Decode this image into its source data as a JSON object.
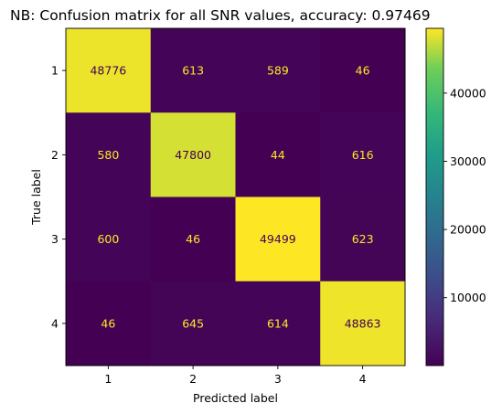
{
  "chart_data": {
    "type": "heatmap",
    "title": "NB: Confusion matrix for all SNR values, accuracy: 0.97469",
    "xlabel": "Predicted label",
    "ylabel": "True label",
    "x_categories": [
      "1",
      "2",
      "3",
      "4"
    ],
    "y_categories": [
      "1",
      "2",
      "3",
      "4"
    ],
    "values": [
      [
        48776,
        613,
        589,
        46
      ],
      [
        580,
        47800,
        44,
        616
      ],
      [
        600,
        46,
        49499,
        623
      ],
      [
        46,
        645,
        614,
        48863
      ]
    ],
    "colormap": "viridis",
    "colorbar_ticks": [
      "10000",
      "20000",
      "30000",
      "40000"
    ],
    "colorbar_range": [
      44,
      49499
    ],
    "text_colors": {
      "on_dark": "#fde725",
      "on_light": "#440154"
    }
  }
}
